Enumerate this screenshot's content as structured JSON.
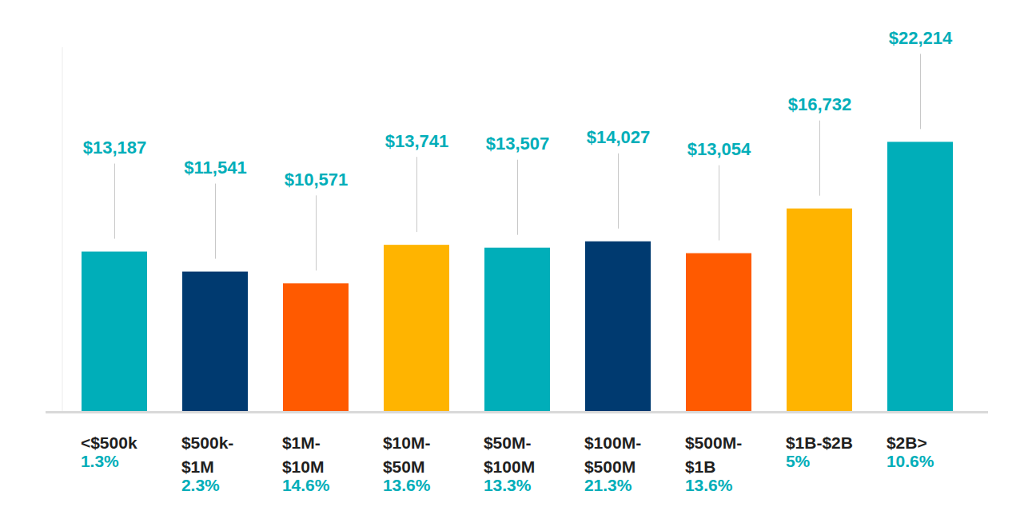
{
  "chart_data": {
    "type": "bar",
    "categories": [
      "<$500k",
      "$500k-\n$1M",
      "$1M-\n$10M",
      "$10M-\n$50M",
      "$50M-\n$100M",
      "$100M-\n$500M",
      "$500M-\n$1B",
      "$1B-$2B",
      "$2B>"
    ],
    "values": [
      13187,
      11541,
      10571,
      13741,
      13507,
      14027,
      13054,
      16732,
      22214
    ],
    "value_labels": [
      "$13,187",
      "$11,541",
      "$10,571",
      "$13,741",
      "$13,507",
      "$14,027",
      "$13,054",
      "$16,732",
      "$22,214"
    ],
    "category_shares": [
      "1.3%",
      "2.3%",
      "14.6%",
      "13.6%",
      "13.3%",
      "21.3%",
      "13.6%",
      "5%",
      "10.6%"
    ],
    "colors": [
      "#00aeb9",
      "#003a70",
      "#ff5a00",
      "#ffb400",
      "#00aeb9",
      "#003a70",
      "#ff5a00",
      "#ffb400",
      "#00aeb9"
    ],
    "data_labels": true,
    "ylim": [
      0,
      30000
    ],
    "yticks": [
      0
    ],
    "tick_labels": false,
    "grid": false
  }
}
